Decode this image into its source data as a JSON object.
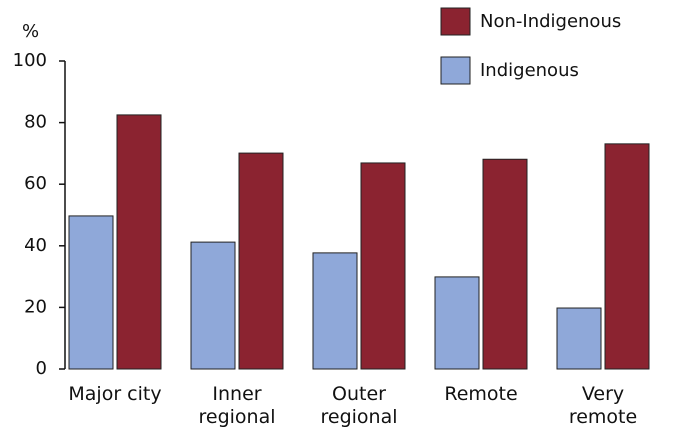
{
  "chart_data": {
    "type": "bar",
    "y_label": "%",
    "categories": [
      "Major city",
      "Inner regional",
      "Outer regional",
      "Remote",
      "Very remote"
    ],
    "series": [
      {
        "name": "Indigenous",
        "color": "#8fa8d9",
        "values": [
          49.7,
          41.2,
          37.7,
          29.9,
          19.8
        ]
      },
      {
        "name": "Non-Indigenous",
        "color": "#8b2330",
        "values": [
          82.5,
          70.1,
          66.9,
          68.1,
          73.1
        ]
      }
    ],
    "ylim": [
      0,
      100
    ],
    "yticks": [
      0,
      20,
      40,
      60,
      80,
      100
    ],
    "legend": "top-right"
  }
}
